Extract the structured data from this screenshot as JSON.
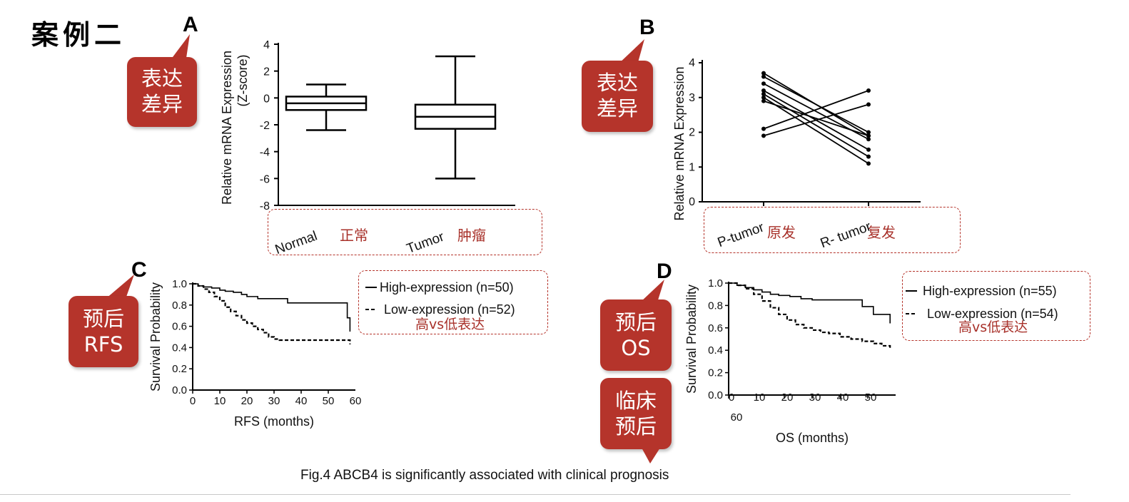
{
  "header": {
    "case_label": "案例二"
  },
  "caption": "Fig.4 ABCB4 is significantly associated with clinical prognosis",
  "colors": {
    "bubble": "#b5342b",
    "chinese_label": "#a8312a",
    "box_border": "#b5342b"
  },
  "panels": {
    "A": {
      "letter": "A",
      "bubble": [
        "表达",
        "差异"
      ],
      "cn_labels": [
        "正常",
        "肿瘤"
      ]
    },
    "B": {
      "letter": "B",
      "bubble": [
        "表达",
        "差异"
      ],
      "cn_labels": [
        "原发",
        "复发"
      ]
    },
    "C": {
      "letter": "C",
      "bubble": [
        "预后",
        "RFS"
      ],
      "legend_cn": "高vs低表达"
    },
    "D": {
      "letter": "D",
      "bubble": [
        "预后",
        "OS"
      ],
      "bubble2": [
        "临床",
        "预后"
      ],
      "legend_cn": "高vs低表达"
    }
  },
  "chart_data": [
    {
      "id": "A",
      "type": "box",
      "ylabel": "Relative mRNA Expression\n(Z-score)",
      "categories": [
        "Normal",
        "Tumor"
      ],
      "yticks": [
        4,
        2,
        0,
        -2,
        -4,
        -6,
        -8
      ],
      "ylim": [
        -8,
        4
      ],
      "boxes": [
        {
          "name": "Normal",
          "min": -2.4,
          "q1": -0.9,
          "median": -0.4,
          "q3": 0.1,
          "max": 1.0
        },
        {
          "name": "Tumor",
          "min": -6.0,
          "q1": -2.3,
          "median": -1.4,
          "q3": -0.5,
          "max": 3.1
        }
      ]
    },
    {
      "id": "B",
      "type": "line",
      "ylabel": "Relative mRNA Expression",
      "categories": [
        "P-tumor",
        "R- tumor"
      ],
      "yticks": [
        4,
        3,
        2,
        1,
        0
      ],
      "ylim": [
        0,
        4
      ],
      "pairs": [
        [
          3.7,
          1.9
        ],
        [
          3.6,
          2.0
        ],
        [
          3.4,
          1.8
        ],
        [
          3.2,
          1.5
        ],
        [
          3.1,
          1.3
        ],
        [
          3.0,
          1.1
        ],
        [
          2.9,
          1.9
        ],
        [
          2.1,
          3.2
        ],
        [
          1.9,
          2.8
        ]
      ]
    },
    {
      "id": "C",
      "type": "line",
      "xlabel": "RFS (months)",
      "ylabel": "Survival Probability",
      "xticks": [
        0,
        10,
        20,
        30,
        40,
        50,
        60
      ],
      "yticks": [
        0.0,
        0.2,
        0.4,
        0.6,
        0.8,
        1.0
      ],
      "xlim": [
        0,
        60
      ],
      "ylim": [
        0,
        1
      ],
      "series": [
        {
          "name": "High-expression (n=50)",
          "style": "solid",
          "x": [
            0,
            2,
            4,
            7,
            10,
            12,
            15,
            18,
            20,
            24,
            30,
            35,
            40,
            45,
            50,
            54,
            56,
            57,
            58
          ],
          "y": [
            1.0,
            0.98,
            0.97,
            0.96,
            0.94,
            0.93,
            0.92,
            0.9,
            0.88,
            0.86,
            0.86,
            0.82,
            0.82,
            0.82,
            0.82,
            0.82,
            0.82,
            0.68,
            0.55
          ]
        },
        {
          "name": "Low-expression (n=52)",
          "style": "dashed",
          "x": [
            0,
            2,
            4,
            6,
            8,
            10,
            12,
            14,
            16,
            18,
            20,
            22,
            24,
            26,
            28,
            30,
            32,
            40,
            50,
            58
          ],
          "y": [
            1.0,
            0.98,
            0.95,
            0.92,
            0.88,
            0.84,
            0.78,
            0.74,
            0.7,
            0.66,
            0.63,
            0.6,
            0.57,
            0.54,
            0.5,
            0.48,
            0.47,
            0.47,
            0.47,
            0.43
          ]
        }
      ]
    },
    {
      "id": "D",
      "type": "line",
      "xlabel": "OS (months)",
      "ylabel": "Survival Probability",
      "xticks": [
        0,
        10,
        20,
        30,
        40,
        50,
        60
      ],
      "yticks": [
        0.0,
        0.2,
        0.4,
        0.6,
        0.8,
        1.0
      ],
      "xlim": [
        0,
        60
      ],
      "ylim": [
        0,
        1
      ],
      "series": [
        {
          "name": "High-expression (n=55)",
          "style": "solid",
          "x": [
            0,
            3,
            6,
            9,
            12,
            15,
            18,
            22,
            26,
            30,
            35,
            40,
            45,
            48,
            52,
            56,
            58
          ],
          "y": [
            1.0,
            0.98,
            0.96,
            0.94,
            0.92,
            0.9,
            0.89,
            0.88,
            0.86,
            0.85,
            0.85,
            0.85,
            0.85,
            0.79,
            0.72,
            0.72,
            0.64
          ]
        },
        {
          "name": "Low-expression (n=54)",
          "style": "dashed",
          "x": [
            0,
            3,
            6,
            9,
            12,
            15,
            18,
            21,
            24,
            27,
            30,
            33,
            36,
            40,
            44,
            48,
            52,
            55,
            58
          ],
          "y": [
            1.0,
            0.98,
            0.95,
            0.9,
            0.84,
            0.78,
            0.72,
            0.67,
            0.63,
            0.6,
            0.58,
            0.56,
            0.55,
            0.52,
            0.5,
            0.48,
            0.46,
            0.44,
            0.42
          ]
        }
      ]
    }
  ]
}
